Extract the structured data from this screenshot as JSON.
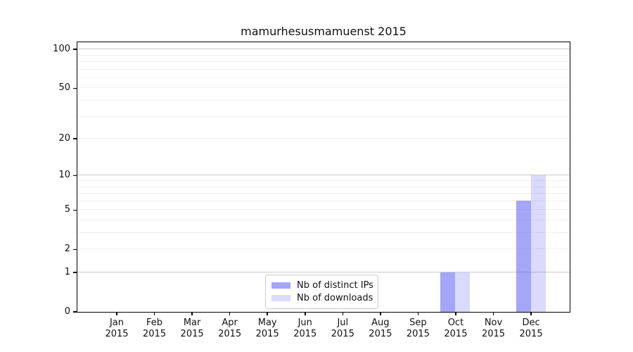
{
  "title": "mamurhesusmamuenst 2015",
  "chart_data": {
    "type": "bar",
    "title": "mamurhesusmamuenst 2015",
    "months": [
      "Jan",
      "Feb",
      "Mar",
      "Apr",
      "May",
      "Jun",
      "Jul",
      "Aug",
      "Sep",
      "Oct",
      "Nov",
      "Dec"
    ],
    "year": "2015",
    "series": [
      {
        "name": "Nb of distinct IPs",
        "color": "rgba(82,82,246,0.52)",
        "values": [
          0,
          0,
          0,
          0,
          0,
          0,
          0,
          0,
          0,
          1,
          0,
          6
        ]
      },
      {
        "name": "Nb of downloads",
        "color": "rgba(82,82,246,0.21)",
        "values": [
          0,
          0,
          0,
          0,
          0,
          0,
          0,
          0,
          0,
          1,
          0,
          10
        ]
      }
    ],
    "xlabel": "",
    "ylabel": "",
    "yscale": "log1p",
    "ylim": [
      0,
      114
    ],
    "y_tick_values": [
      0,
      1,
      2,
      5,
      10,
      20,
      50,
      100
    ],
    "y_major_gridlines": [
      1,
      10,
      100
    ],
    "y_minor_gridlines": [
      2,
      3,
      4,
      5,
      6,
      7,
      8,
      9,
      20,
      30,
      40,
      50,
      60,
      70,
      80,
      90
    ],
    "grid": "horizontal",
    "legend_position": "lower center",
    "colors": {
      "axis": "#000000",
      "grid_minor": "#efefef",
      "grid_major": "#c9c9c9",
      "text": "#111111"
    }
  }
}
